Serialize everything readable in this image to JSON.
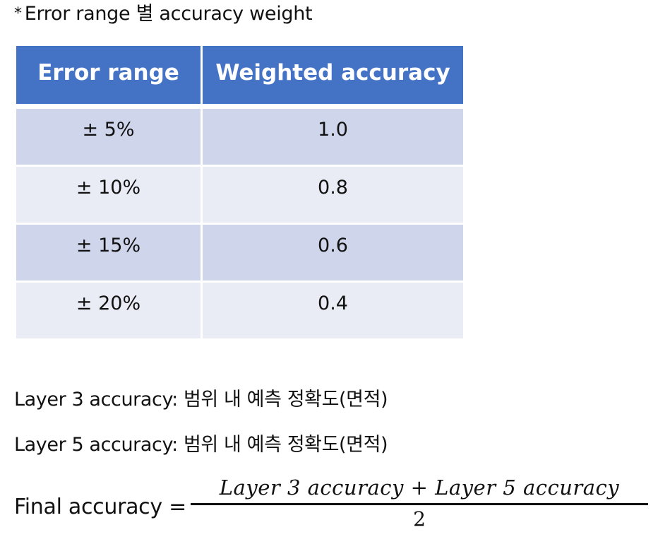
{
  "note": {
    "marker": "*",
    "text": "Error range  별  accuracy weight"
  },
  "table": {
    "headers": [
      "Error range",
      "Weighted accuracy"
    ],
    "rows": [
      [
        "± 5%",
        "1.0"
      ],
      [
        "± 10%",
        "0.8"
      ],
      [
        "± 15%",
        "0.6"
      ],
      [
        "± 20%",
        "0.4"
      ]
    ]
  },
  "lines": {
    "layer3": "Layer 3 accuracy:  범위  내  예측  정확도(면적)",
    "layer5": "Layer 5 accuracy:  범위  내  예측  정확도(면적)"
  },
  "formula": {
    "label": "Final accuracy =",
    "numerator": "Layer 3 accuracy + Layer 5 accuracy",
    "denominator": "2"
  },
  "colors": {
    "header_bg": "#4472c4",
    "row_dark": "#cfd5ea",
    "row_light": "#e9ebf5"
  }
}
